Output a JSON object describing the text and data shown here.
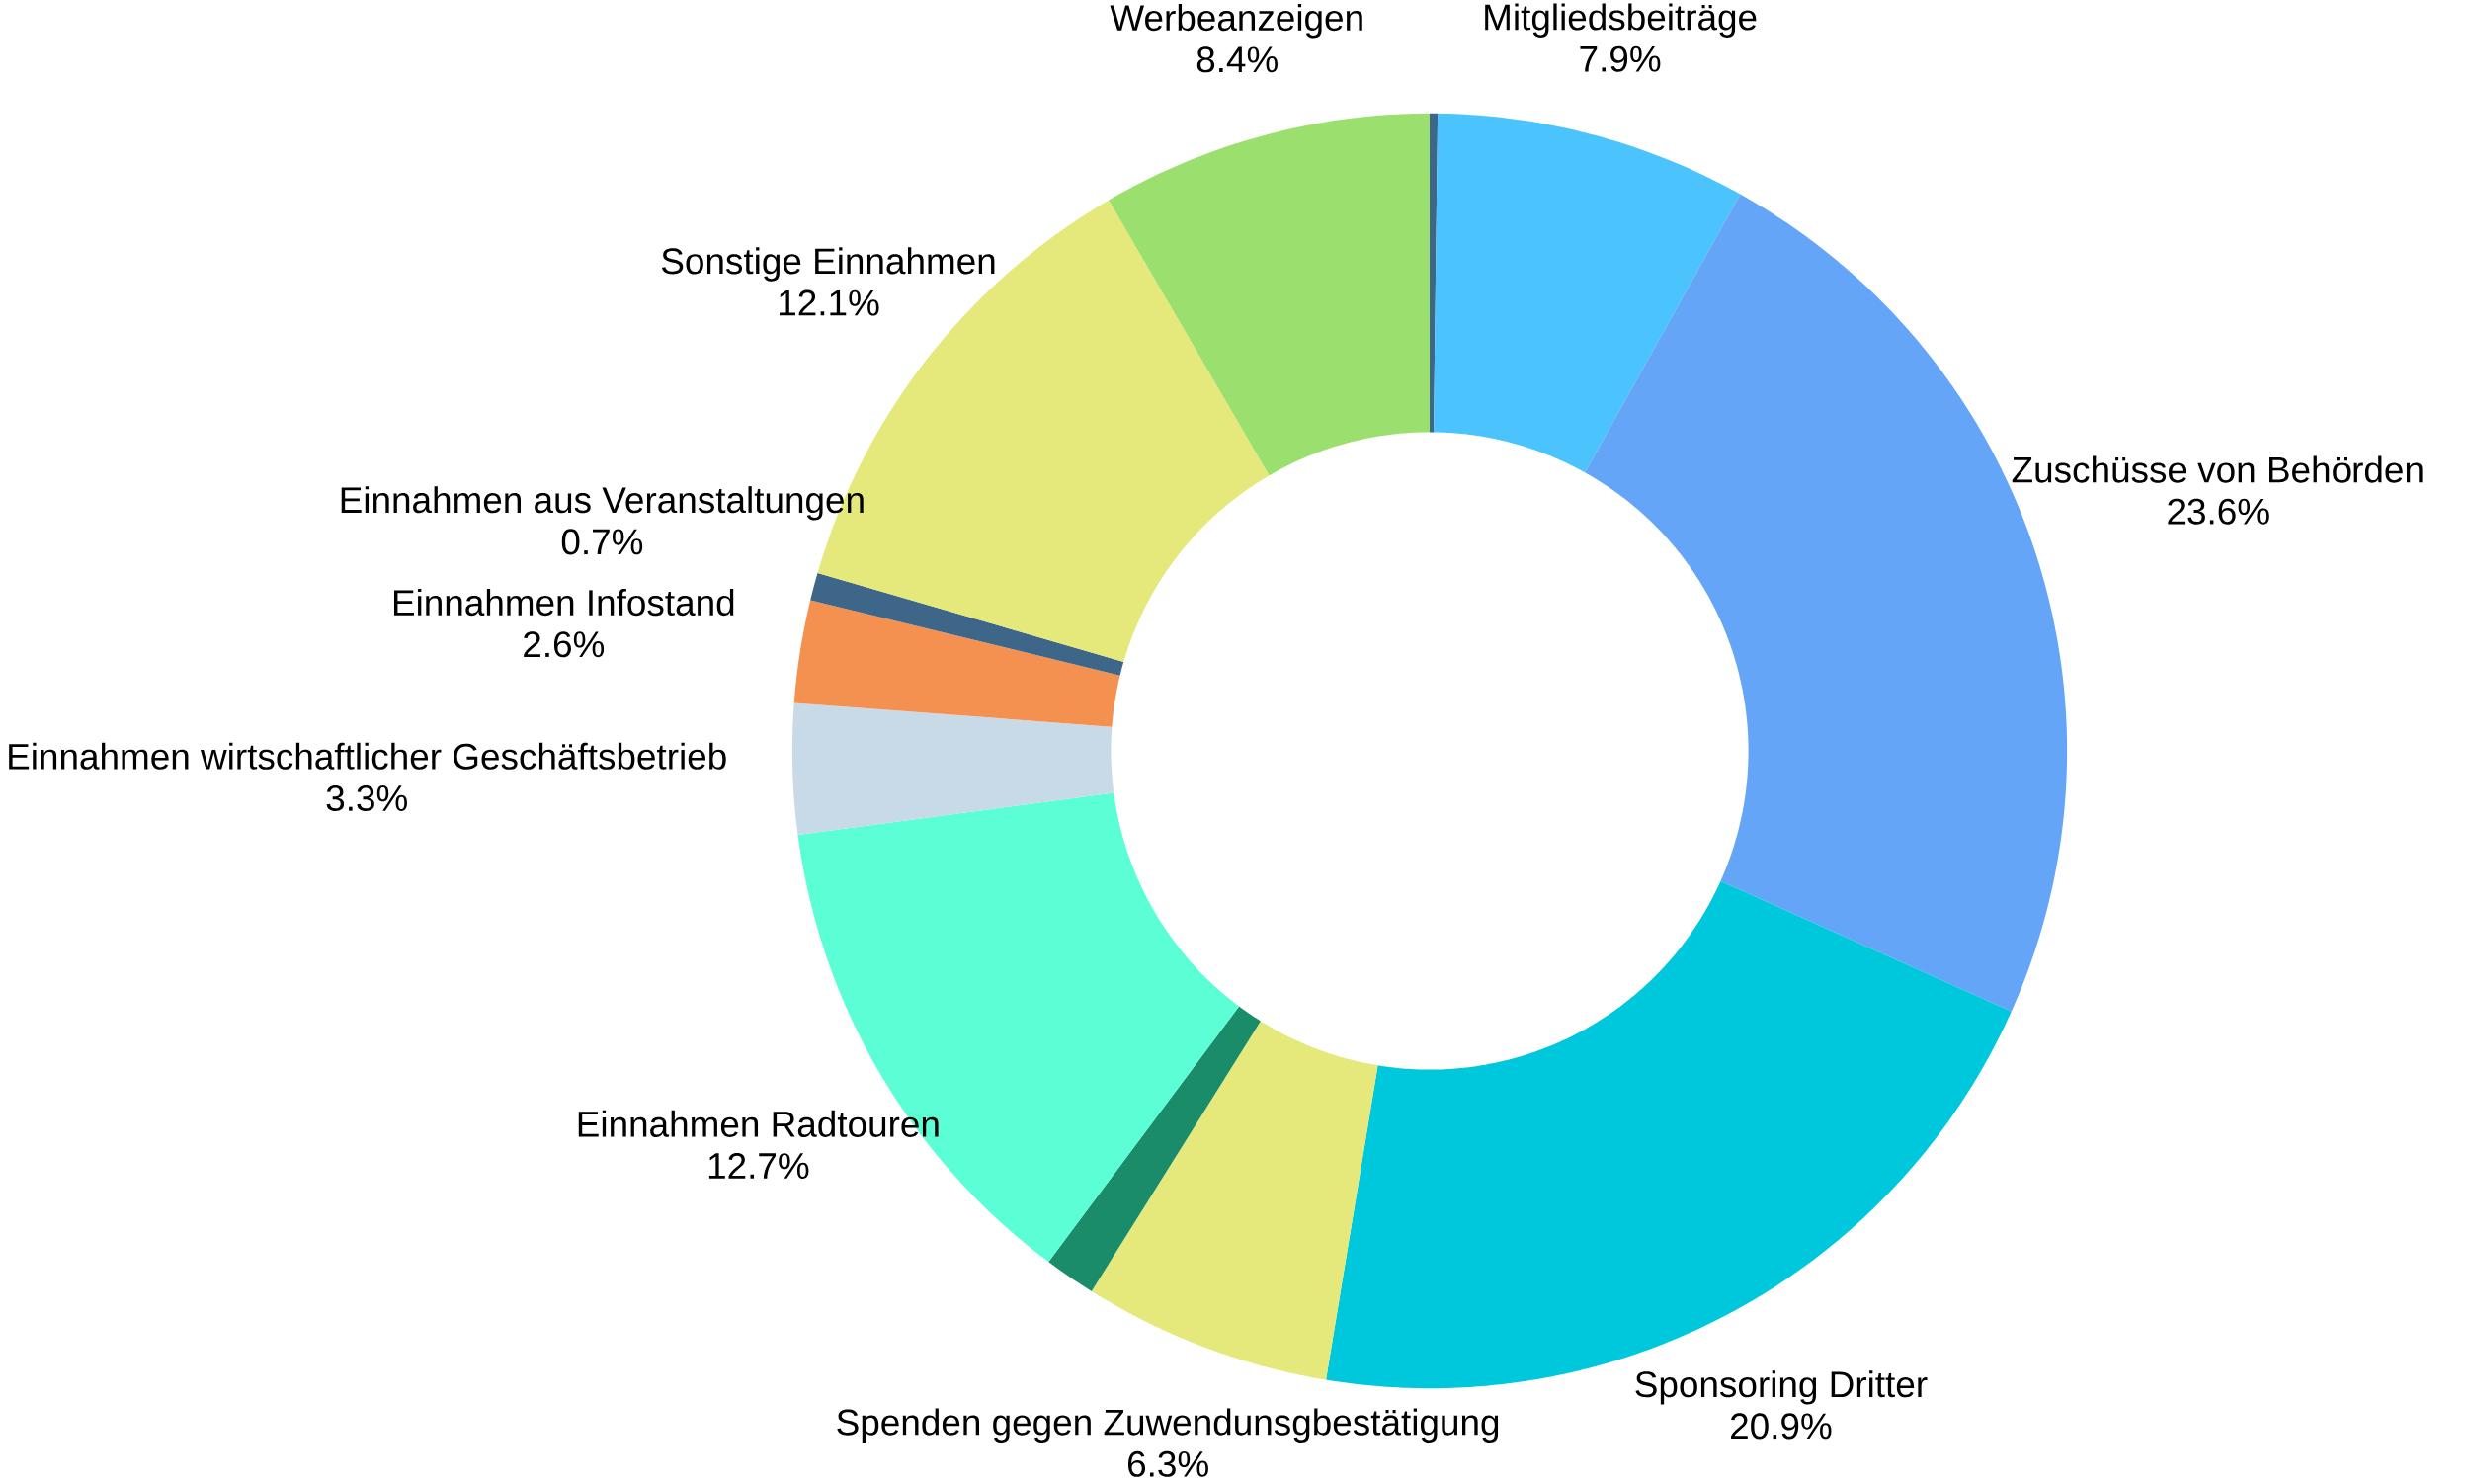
{
  "chart_data": {
    "type": "donut",
    "categories": [
      null,
      "Mitgliedsbeiträge",
      "Zuschüsse von Behörden",
      "Sponsoring Dritter",
      "Spenden gegen Zuwendunsgbestätigung",
      null,
      "Einnahmen Radtouren",
      "Einnahmen wirtschaftlicher Geschäftsbetrieb",
      "Einnahmen Infostand",
      "Einnahmen aus Veranstaltungen",
      "Sonstige Einnahmen",
      "Werbeanzeigen"
    ],
    "values": [
      0.2,
      7.9,
      23.6,
      20.9,
      6.3,
      1.3,
      12.7,
      3.3,
      2.6,
      0.7,
      12.1,
      8.4
    ],
    "value_labels": [
      null,
      "7.9%",
      "23.6%",
      "20.9%",
      "6.3%",
      null,
      "12.7%",
      "3.3%",
      "2.6%",
      "0.7%",
      "12.1%",
      "8.4%"
    ],
    "colors": [
      "#3d6688",
      "#4bc3fd",
      "#64a5f8",
      "#00c8dc",
      "#e5e87a",
      "#1a8c6a",
      "#5cffd5",
      "#c8d9e8",
      "#f59150",
      "#3d6688",
      "#e5e87a",
      "#9be06e"
    ]
  }
}
